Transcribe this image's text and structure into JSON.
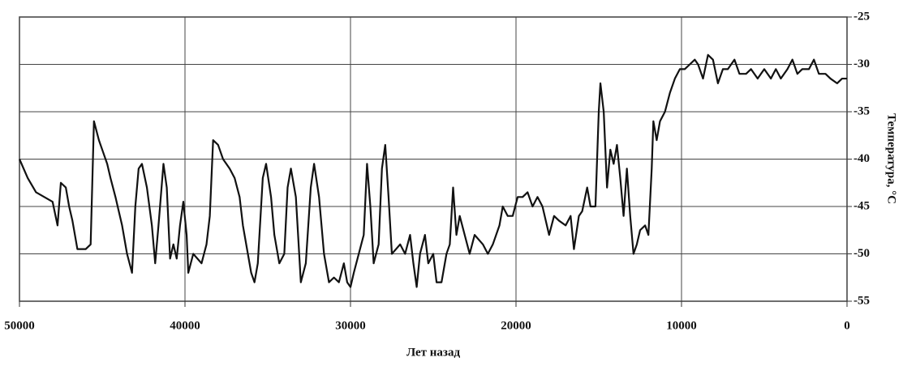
{
  "chart_data": {
    "type": "line",
    "xlabel": "Лет назад",
    "ylabel": "Температура, °С",
    "x": [
      50000,
      49500,
      49000,
      48500,
      48000,
      47700,
      47500,
      47200,
      47000,
      46800,
      46500,
      46000,
      45700,
      45500,
      45200,
      45000,
      44700,
      44500,
      44200,
      44000,
      43800,
      43500,
      43200,
      43000,
      42800,
      42600,
      42300,
      42000,
      41800,
      41600,
      41300,
      41100,
      40900,
      40700,
      40500,
      40300,
      40100,
      39900,
      39800,
      39500,
      39000,
      38700,
      38500,
      38300,
      38000,
      37700,
      37300,
      37000,
      36700,
      36500,
      36200,
      36000,
      35800,
      35600,
      35300,
      35100,
      34800,
      34600,
      34300,
      34000,
      33800,
      33600,
      33300,
      33000,
      32700,
      32400,
      32200,
      31900,
      31600,
      31300,
      31000,
      30700,
      30400,
      30200,
      30000,
      29800,
      29500,
      29200,
      29000,
      28800,
      28600,
      28300,
      28100,
      27900,
      27700,
      27500,
      27000,
      26700,
      26400,
      26200,
      26000,
      25800,
      25500,
      25300,
      25000,
      24800,
      24500,
      24200,
      24000,
      23800,
      23600,
      23400,
      23100,
      22800,
      22500,
      22000,
      21700,
      21400,
      21000,
      20800,
      20500,
      20200,
      19900,
      19600,
      19300,
      19000,
      18700,
      18400,
      18000,
      17700,
      17400,
      17000,
      16700,
      16500,
      16200,
      16000,
      15700,
      15500,
      15200,
      15000,
      14900,
      14700,
      14500,
      14300,
      14100,
      13900,
      13700,
      13500,
      13300,
      13100,
      12900,
      12700,
      12500,
      12200,
      12000,
      11800,
      11700,
      11500,
      11300,
      11000,
      10700,
      10400,
      10100,
      9800,
      9500,
      9200,
      9000,
      8700,
      8400,
      8100,
      7800,
      7500,
      7200,
      6800,
      6500,
      6100,
      5800,
      5400,
      5000,
      4600,
      4300,
      4000,
      3600,
      3300,
      3000,
      2700,
      2300,
      2000,
      1700,
      1300,
      1000,
      600,
      300,
      0
    ],
    "series": [
      {
        "color": "#111111",
        "values": [
          -40,
          -42,
          -43.5,
          -44,
          -44.5,
          -47,
          -42.5,
          -43,
          -45,
          -46.5,
          -49.5,
          -49.5,
          -49,
          -36,
          -38,
          -39,
          -40.5,
          -42,
          -44,
          -45.5,
          -47,
          -50,
          -52,
          -45,
          -41,
          -40.5,
          -43,
          -47,
          -51,
          -47,
          -40.5,
          -43,
          -50.5,
          -49,
          -50.5,
          -47,
          -44.5,
          -48,
          -52,
          -50,
          -51,
          -49,
          -46,
          -38,
          -38.5,
          -40,
          -41,
          -42,
          -44,
          -47,
          -50,
          -52,
          -53,
          -51,
          -42,
          -40.5,
          -44,
          -48,
          -51,
          -50,
          -43,
          -41,
          -44,
          -53,
          -51,
          -43,
          -40.5,
          -44,
          -50,
          -53,
          -52.5,
          -53,
          -51,
          -53,
          -53.5,
          -52,
          -50,
          -48,
          -40.5,
          -45,
          -51,
          -49,
          -41,
          -38.5,
          -44,
          -50,
          -49,
          -50,
          -48,
          -51,
          -53.5,
          -50,
          -48,
          -51,
          -50,
          -53,
          -53,
          -50,
          -49,
          -43,
          -48,
          -46,
          -48,
          -50,
          -48,
          -49,
          -50,
          -49,
          -47,
          -45,
          -46,
          -46,
          -44,
          -44,
          -43.5,
          -45,
          -44,
          -45,
          -48,
          -46,
          -46.5,
          -47,
          -46,
          -49.5,
          -46,
          -45.5,
          -43,
          -45,
          -45,
          -35,
          -32,
          -35,
          -43,
          -39,
          -40.5,
          -38.5,
          -42,
          -46,
          -41,
          -46,
          -50,
          -49,
          -47.5,
          -47,
          -48,
          -41,
          -36,
          -38,
          -36,
          -35,
          -33,
          -31.5,
          -30.5,
          -30.5,
          -30,
          -29.5,
          -30,
          -31.5,
          -29,
          -29.5,
          -32,
          -30.5,
          -30.5,
          -29.5,
          -31,
          -31,
          -30.5,
          -31.5,
          -30.5,
          -31.5,
          -30.5,
          -31.5,
          -30.5,
          -29.5,
          -31,
          -30.5,
          -30.5,
          -29.5,
          -31,
          -31,
          -31.5,
          -32,
          -31.5,
          -31.5
        ]
      }
    ],
    "xlim": [
      50000,
      0
    ],
    "xticks": [
      50000,
      40000,
      30000,
      20000,
      10000,
      0
    ],
    "ylim": [
      -55,
      -25
    ],
    "yticks": [
      -55,
      -50,
      -45,
      -40,
      -35,
      -30,
      -25
    ],
    "grid": true
  }
}
